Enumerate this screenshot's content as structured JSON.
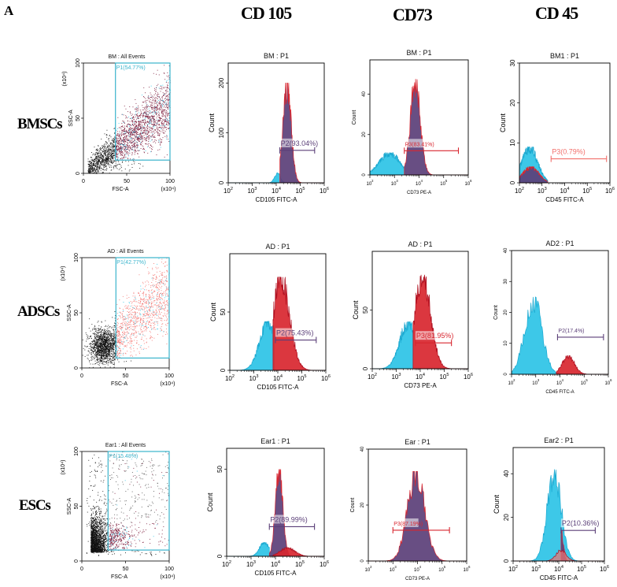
{
  "figure": {
    "panel_letter": "A",
    "column_headers": [
      "CD 105",
      "CD73",
      "CD 45"
    ],
    "row_labels": [
      "BMSCs",
      "ADSCs",
      "ESCs"
    ]
  },
  "colors": {
    "cyan": "#2cc3e6",
    "purple": "#5b3f78",
    "red": "#d8262f",
    "maroon": "#7a1838",
    "salmon": "#f2706c",
    "gate_cyan": "#3ab4cc"
  },
  "chart_data": [
    {
      "type": "scatter",
      "row": 0,
      "title": "BM : All Events",
      "gate_label": "P1(54.77%)",
      "xlabel": "FSC-A",
      "ylabel": "SSC-A",
      "multiplier": "(x10⁴)",
      "xlim": [
        0,
        100
      ],
      "ylim": [
        0,
        100
      ],
      "xticks": [
        0,
        50,
        100
      ],
      "yticks": [
        0,
        50,
        100
      ],
      "gate": {
        "x": 37,
        "y": 12
      },
      "pattern": "band",
      "gated_color": "maroon"
    },
    {
      "type": "histogram",
      "row": 0,
      "title": "BM : P1",
      "xlabel": "CD105 FITC-A",
      "ylabel": "Count",
      "xlim_log10": [
        2,
        6
      ],
      "ylim": [
        0,
        240
      ],
      "yticks": [
        0,
        100,
        200
      ],
      "populations": [
        {
          "color": "cyan",
          "mu": 4.05,
          "sd": 0.12,
          "height": 20
        },
        {
          "color": "purple",
          "mu": 4.45,
          "sd": 0.17,
          "height": 200,
          "start": 4.15
        }
      ],
      "gate": {
        "from": 4.15,
        "to": 5.6,
        "y": 65,
        "label": "P2(93.04%)",
        "color": "purple"
      }
    },
    {
      "type": "histogram",
      "row": 0,
      "title": "BM : P1",
      "xlabel": "CD73 PE-A",
      "ylabel": "Count",
      "xlim_log10": [
        2,
        6
      ],
      "ylim": [
        0,
        57
      ],
      "yticks": [
        0,
        20,
        40
      ],
      "populations": [
        {
          "color": "cyan",
          "mu": 2.8,
          "sd": 0.4,
          "height": 11,
          "end": 3.4
        },
        {
          "color": "purple",
          "mu": 3.85,
          "sd": 0.2,
          "height": 48,
          "start": 3.4
        }
      ],
      "gate": {
        "from": 3.4,
        "to": 5.6,
        "y": 12,
        "label": "P3(83.41%)",
        "color": "red"
      }
    },
    {
      "type": "histogram",
      "row": 0,
      "title": "BM1 : P1",
      "xlabel": "CD45 FITC-A",
      "ylabel": "Count",
      "xlim_log10": [
        2,
        6
      ],
      "ylim": [
        0,
        30
      ],
      "yticks": [
        0,
        10,
        20,
        30
      ],
      "populations": [
        {
          "color": "cyan",
          "mu": 2.45,
          "sd": 0.35,
          "height": 9,
          "end": 3.25
        },
        {
          "color": "purple",
          "mu": 2.5,
          "sd": 0.35,
          "height": 4,
          "end": 3.25
        }
      ],
      "gate": {
        "from": 3.4,
        "to": 5.85,
        "y": 6,
        "label": "P3(0.79%)",
        "color": "salmon"
      }
    },
    {
      "type": "scatter",
      "row": 1,
      "title": "AD : All Events",
      "gate_label": "P1(42.77%)",
      "xlabel": "FSC-A",
      "ylabel": "SSC-A",
      "multiplier": "(x10⁴)",
      "xlim": [
        0,
        100
      ],
      "ylim": [
        0,
        100
      ],
      "xticks": [
        0,
        50,
        100
      ],
      "yticks": [
        0,
        50,
        100
      ],
      "gate": {
        "x": 39,
        "y": 9
      },
      "pattern": "blob",
      "gated_color": "salmon"
    },
    {
      "type": "histogram",
      "row": 1,
      "title": "AD : P1",
      "xlabel": "CD105 FITC-A",
      "ylabel": "Count",
      "xlim_log10": [
        2,
        6
      ],
      "ylim": [
        0,
        100
      ],
      "yticks": [
        0,
        50
      ],
      "populations": [
        {
          "color": "cyan",
          "mu": 3.6,
          "sd": 0.35,
          "height": 42,
          "end": 3.85
        },
        {
          "color": "red",
          "mu": 4.15,
          "sd": 0.35,
          "height": 80,
          "start": 3.8
        }
      ],
      "gate": {
        "from": 3.9,
        "to": 5.6,
        "y": 26,
        "label": "P2(75.43%)",
        "color": "purple"
      }
    },
    {
      "type": "histogram",
      "row": 1,
      "title": "AD : P1",
      "xlabel": "CD73 PE-A",
      "ylabel": "Count",
      "xlim_log10": [
        2,
        6
      ],
      "ylim": [
        0,
        100
      ],
      "yticks": [
        0,
        50
      ],
      "populations": [
        {
          "color": "cyan",
          "mu": 3.5,
          "sd": 0.35,
          "height": 40,
          "end": 3.7
        },
        {
          "color": "red",
          "mu": 4.1,
          "sd": 0.33,
          "height": 80,
          "start": 3.7
        }
      ],
      "gate": {
        "from": 3.8,
        "to": 5.3,
        "y": 22,
        "label": "P3(81.95%)",
        "color": "red"
      }
    },
    {
      "type": "histogram",
      "row": 1,
      "title": "AD2 : P1",
      "xlabel": "CD45 FITC-A",
      "ylabel": "Count",
      "xlim_log10": [
        2,
        6
      ],
      "ylim": [
        0,
        40
      ],
      "yticks": [
        0,
        10,
        20,
        30,
        40
      ],
      "populations": [
        {
          "color": "cyan",
          "mu": 2.9,
          "sd": 0.35,
          "height": 25
        },
        {
          "color": "red",
          "mu": 4.35,
          "sd": 0.25,
          "height": 6,
          "start": 3.85
        }
      ],
      "gate": {
        "from": 3.9,
        "to": 5.8,
        "y": 12,
        "label": "P2(17.4%)",
        "color": "purple"
      }
    },
    {
      "type": "scatter",
      "row": 2,
      "title": "Ear1 : All Events",
      "gate_label": "P1(15.48%)",
      "xlabel": "FSC-A",
      "ylabel": "SSC-A",
      "multiplier": "(x10⁴)",
      "xlim": [
        0,
        100
      ],
      "ylim": [
        0,
        100
      ],
      "xticks": [
        0,
        50,
        100
      ],
      "yticks": [
        0,
        50,
        100
      ],
      "gate": {
        "x": 30,
        "y": 10
      },
      "pattern": "corner",
      "gated_color": "maroon"
    },
    {
      "type": "histogram",
      "row": 2,
      "title": "Ear1 : P1",
      "xlabel": "CD105 FITC-A",
      "ylabel": "Count",
      "xlim_log10": [
        2,
        6
      ],
      "ylim": [
        0,
        62
      ],
      "yticks": [
        0,
        50
      ],
      "populations": [
        {
          "color": "cyan",
          "mu": 3.55,
          "sd": 0.2,
          "height": 8,
          "end": 3.75
        },
        {
          "color": "purple",
          "mu": 4.15,
          "sd": 0.15,
          "height": 50,
          "start": 3.75
        },
        {
          "color": "red",
          "mu": 4.5,
          "sd": 0.3,
          "height": 5,
          "start": 3.9
        }
      ],
      "gate": {
        "from": 3.75,
        "to": 5.6,
        "y": 17,
        "label": "P2(89.99%)",
        "color": "purple"
      }
    },
    {
      "type": "histogram",
      "row": 2,
      "title": "Ear : P1",
      "xlabel": "CD73 PE-A",
      "ylabel": "Count",
      "xlim_log10": [
        2,
        6
      ],
      "ylim": [
        0,
        40
      ],
      "yticks": [
        0,
        20,
        40
      ],
      "populations": [
        {
          "color": "purple",
          "mu": 3.95,
          "sd": 0.35,
          "height": 32
        }
      ],
      "gate": {
        "from": 3.0,
        "to": 5.3,
        "y": 11,
        "label": "P3(87.19%)",
        "color": "red"
      }
    },
    {
      "type": "histogram",
      "row": 2,
      "title": "Ear2 : P1",
      "xlabel": "CD45 FITC-A",
      "ylabel": "Count",
      "xlim_log10": [
        2,
        6
      ],
      "ylim": [
        0,
        52
      ],
      "yticks": [
        0,
        20,
        40
      ],
      "populations": [
        {
          "color": "cyan",
          "mu": 3.8,
          "sd": 0.3,
          "height": 42
        },
        {
          "color": "purple",
          "mu": 4.1,
          "sd": 0.1,
          "height": 14,
          "start": 4.1
        },
        {
          "color": "salmon",
          "mu": 4.1,
          "sd": 0.22,
          "height": 5
        }
      ],
      "gate": {
        "from": 4.1,
        "to": 5.6,
        "y": 14,
        "label": "P2(10.36%)",
        "color": "purple"
      }
    }
  ]
}
